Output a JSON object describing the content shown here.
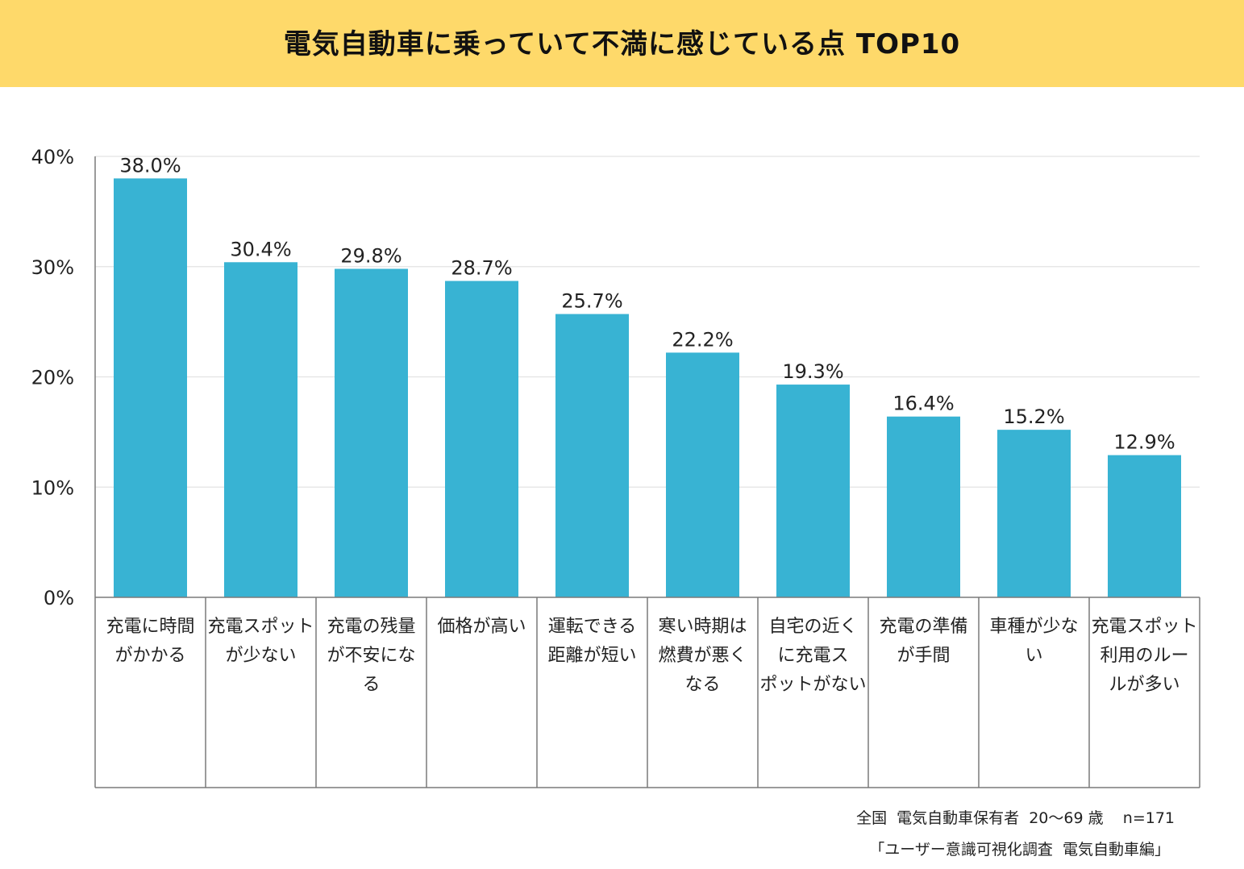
{
  "title": "電気自動車に乗っていて不満に感じている点 TOP10",
  "chart_data": {
    "type": "bar",
    "title": "電気自動車に乗っていて不満に感じている点 TOP10",
    "xlabel": "",
    "ylabel": "",
    "ylim": [
      0,
      40
    ],
    "yticks": [
      0,
      10,
      20,
      30,
      40
    ],
    "ytick_labels": [
      "0%",
      "10%",
      "20%",
      "30%",
      "40%"
    ],
    "grid": true,
    "categories": [
      [
        "充電に時間",
        "がかかる"
      ],
      [
        "充電スポット",
        "が少ない"
      ],
      [
        "充電の残量",
        "が不安にな",
        "る"
      ],
      [
        "価格が高い"
      ],
      [
        "運転できる",
        "距離が短い"
      ],
      [
        "寒い時期は",
        "燃費が悪く",
        "なる"
      ],
      [
        "自宅の近く",
        "に充電ス",
        "ポットがない"
      ],
      [
        "充電の準備",
        "が手間"
      ],
      [
        "車種が少な",
        "い"
      ],
      [
        "充電スポット",
        "利用のルー",
        "ルが多い"
      ]
    ],
    "values": [
      38.0,
      30.4,
      29.8,
      28.7,
      25.7,
      22.2,
      19.3,
      16.4,
      15.2,
      12.9
    ],
    "value_labels": [
      "38.0%",
      "30.4%",
      "29.8%",
      "28.7%",
      "25.7%",
      "22.2%",
      "19.3%",
      "16.4%",
      "15.2%",
      "12.9%"
    ],
    "colors": {
      "bar": "#38b3d3",
      "grid": "#e3e3e3",
      "axis": "#7a7a7a",
      "text": "#222222"
    }
  },
  "footnotes": {
    "line1": "全国  電気自動車保有者  20～69 歳    n=171",
    "line2": "「ユーザー意識可視化調査  電気自動車編」"
  },
  "colors": {
    "banner": "#fed96a"
  }
}
